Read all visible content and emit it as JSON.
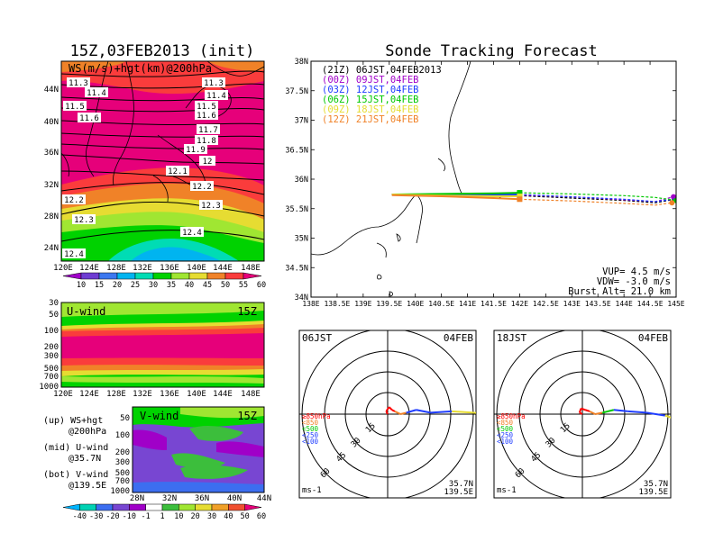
{
  "left_title": "15Z,03FEB2013 (init)",
  "right_title": "Sonde Tracking Forecast",
  "map_panel": {
    "label": "WS(m/s)+hgt(km)@200hPa",
    "lat_labels": [
      "44N",
      "40N",
      "36N",
      "32N",
      "28N",
      "24N"
    ],
    "lon_labels": [
      "120E",
      "124E",
      "128E",
      "132E",
      "136E",
      "140E",
      "144E",
      "148E"
    ],
    "colorbar_labels": [
      "10",
      "15",
      "20",
      "25",
      "30",
      "35",
      "40",
      "45",
      "50",
      "55",
      "60"
    ],
    "contour_labels": [
      "11.3",
      "11.4",
      "11.5",
      "11.6",
      "11.3",
      "11.4",
      "11.5",
      "11.6",
      "11.7",
      "11.8",
      "11.9",
      "12",
      "12.1",
      "12.2",
      "12.2",
      "12.3",
      "12.3",
      "12.4",
      "12.4"
    ]
  },
  "u_panel": {
    "label": "U-wind",
    "time": "15Z",
    "p_labels": [
      "30",
      "50",
      "100",
      "200",
      "300",
      "500",
      "700",
      "1000"
    ],
    "lon_labels": [
      "120E",
      "124E",
      "128E",
      "132E",
      "136E",
      "140E",
      "144E",
      "148E"
    ]
  },
  "v_panel": {
    "label": "V-wind",
    "time": "15Z",
    "p_labels": [
      "50",
      "100",
      "200",
      "300",
      "500",
      "700",
      "1000"
    ],
    "lat_labels": [
      "28N",
      "32N",
      "36N",
      "40N",
      "44N"
    ],
    "colorbar_labels": [
      "-40",
      "-30",
      "-20",
      "-10",
      "-1",
      "1",
      "10",
      "20",
      "30",
      "40",
      "50",
      "60"
    ]
  },
  "legend_notes": {
    "up": [
      "(up) WS+hgt",
      "@200hPa"
    ],
    "mid": [
      "(mid) U-wind",
      "@35.7N"
    ],
    "bot": [
      "(bot) V-wind",
      "@139.5E"
    ]
  },
  "chart_data": [
    {
      "type": "line",
      "title": "Sonde Tracking Forecast",
      "xlim": [
        138,
        145
      ],
      "ylim": [
        34,
        38
      ],
      "x_tick_labels": [
        "138E",
        "138.5E",
        "139E",
        "139.5E",
        "140E",
        "140.5E",
        "141E",
        "141.5E",
        "142E",
        "142.5E",
        "143E",
        "143.5E",
        "144E",
        "144.5E",
        "145E"
      ],
      "y_tick_labels": [
        "34N",
        "34.5N",
        "35N",
        "35.5N",
        "36N",
        "36.5N",
        "37N",
        "37.5N",
        "38N"
      ],
      "series": [
        {
          "name": "(21Z) 06JST,04FEB2013",
          "color": "#000000",
          "x": [
            139.55,
            140.5,
            141.5,
            142.0,
            143.0,
            144.0,
            144.6,
            144.97
          ],
          "y": [
            35.74,
            35.73,
            35.72,
            35.72,
            35.68,
            35.64,
            35.6,
            35.66
          ]
        },
        {
          "name": "(00Z) 09JST,04FEB",
          "color": "#a000c8",
          "x": [
            139.55,
            140.5,
            141.5,
            142.0,
            143.0,
            144.0,
            144.6,
            144.95
          ],
          "y": [
            35.74,
            35.74,
            35.73,
            35.73,
            35.7,
            35.65,
            35.62,
            35.7
          ]
        },
        {
          "name": "(03Z) 12JST,04FEB",
          "color": "#1e3cff",
          "x": [
            139.55,
            140.5,
            141.5,
            142.0,
            143.0,
            144.0,
            144.6,
            145.05
          ],
          "y": [
            35.74,
            35.74,
            35.74,
            35.74,
            35.7,
            35.66,
            35.62,
            35.67
          ]
        },
        {
          "name": "(06Z) 15JST,04FEB",
          "color": "#00c800",
          "x": [
            139.55,
            140.5,
            141.5,
            142.0,
            143.0,
            144.0,
            144.6,
            145.0
          ],
          "y": [
            35.74,
            35.75,
            35.76,
            35.77,
            35.75,
            35.72,
            35.69,
            35.64
          ]
        },
        {
          "name": "(09Z) 18JST,04FEB",
          "color": "#e6dc32",
          "x": [
            139.55,
            140.5,
            141.5,
            142.0
          ],
          "y": [
            35.74,
            35.72,
            35.71,
            35.71
          ]
        },
        {
          "name": "(12Z) 21JST,04FEB",
          "color": "#f08228",
          "x": [
            139.55,
            140.5,
            141.5,
            142.0,
            143.0,
            144.0,
            144.6,
            144.92
          ],
          "y": [
            35.73,
            35.71,
            35.68,
            35.66,
            35.63,
            35.59,
            35.56,
            35.6
          ]
        }
      ],
      "annotations": [
        "VUP= 4.5 m/s",
        "VDW= -3.0 m/s",
        "Burst Alt= 21.0 km"
      ]
    },
    {
      "type": "line",
      "title": "06JST 04FEB hodograph",
      "label_left": "06JST",
      "label_right": "04FEB",
      "location": [
        "35.7N",
        "139.5E"
      ],
      "unit": "ms-1",
      "ring_labels": [
        "15",
        "30",
        "45",
        "60"
      ],
      "level_labels": [
        "≥850hPa",
        "<850",
        "<500",
        "<250",
        "<100"
      ],
      "level_colors": [
        "#ff0000",
        "#f08228",
        "#00c800",
        "#1e3cff",
        "#1e3cff"
      ],
      "series": [
        {
          "name": "hodograph",
          "u": [
            0,
            -1,
            1,
            3,
            5,
            9,
            13,
            20,
            30,
            45,
            60,
            75,
            80,
            85,
            90,
            95,
            100,
            110
          ],
          "v": [
            0,
            2,
            5,
            3,
            2,
            0,
            1,
            3,
            1,
            2,
            1,
            0,
            -1,
            1,
            0,
            1,
            1,
            0
          ]
        }
      ]
    },
    {
      "type": "line",
      "title": "18JST 04FEB hodograph",
      "label_left": "18JST",
      "label_right": "04FEB",
      "location": [
        "35.7N",
        "139.5E"
      ],
      "unit": "ms-1",
      "ring_labels": [
        "15",
        "30",
        "45",
        "60"
      ],
      "level_labels": [
        "≥850hPa",
        "<850",
        "<500",
        "<250",
        "<100"
      ],
      "level_colors": [
        "#ff0000",
        "#f08228",
        "#00c800",
        "#1e3cff",
        "#1e3cff"
      ],
      "series": [
        {
          "name": "hodograph",
          "u": [
            0,
            -2,
            -1,
            2,
            5,
            9,
            14,
            22,
            32,
            45,
            58,
            70,
            78,
            85,
            95,
            110
          ],
          "v": [
            0,
            1,
            4,
            3,
            2,
            0,
            1,
            3,
            2,
            1,
            -1,
            -5,
            -1,
            1,
            1,
            2
          ],
          "colors": [
            "#ff0000",
            "#ff0000",
            "#ff0000",
            "#ff0000",
            "#f08228",
            "#f08228",
            "#00c800",
            "#1e3cff",
            "#1e3cff",
            "#1e3cff",
            "#e6dc32",
            "#e6dc32",
            "#1e3cff",
            "#00c800",
            "#00c800"
          ]
        }
      ]
    }
  ],
  "colors": {
    "ws_scale": [
      "#a000c8",
      "#6e3cd2",
      "#3c78f0",
      "#00b4f0",
      "#00dcb4",
      "#00d200",
      "#a0e632",
      "#e6dc32",
      "#f08228",
      "#fa3c3c",
      "#e6007a"
    ],
    "v_scale": [
      "#00b4ff",
      "#00d2b4",
      "#3c6ef0",
      "#7846d2",
      "#a000c8",
      "#ffffff",
      "#3cbe3c",
      "#a0e632",
      "#e6dc32",
      "#f0a028",
      "#f05030",
      "#e6007a"
    ]
  }
}
